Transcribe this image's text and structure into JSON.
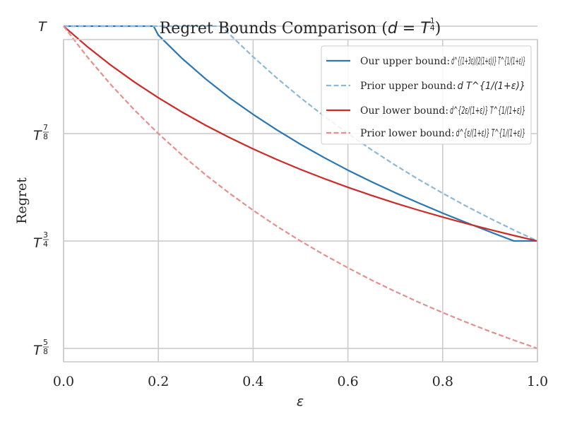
{
  "chart_data": {
    "type": "line",
    "title": {
      "prefix": "Regret Bounds Comparison (",
      "var": "d",
      "eq": " = ",
      "base": "T",
      "exp_num": "1",
      "exp_den": "4",
      "suffix": ")"
    },
    "xlabel": "ε",
    "ylabel": "Regret",
    "xlim": [
      0.0,
      1.0
    ],
    "ylim": [
      0.6094,
      0.9844
    ],
    "xticks": [
      {
        "value": 0.0,
        "label": "0.0"
      },
      {
        "value": 0.2,
        "label": "0.2"
      },
      {
        "value": 0.4,
        "label": "0.4"
      },
      {
        "value": 0.6,
        "label": "0.6"
      },
      {
        "value": 0.8,
        "label": "0.8"
      },
      {
        "value": 1.0,
        "label": "1.0"
      }
    ],
    "yticks": [
      {
        "value": 0.625,
        "base": "T",
        "num": "5",
        "den": "8"
      },
      {
        "value": 0.75,
        "base": "T",
        "num": "3",
        "den": "4"
      },
      {
        "value": 0.875,
        "base": "T",
        "num": "7",
        "den": "8"
      },
      {
        "value": 1.0,
        "base": "T",
        "num": "",
        "den": ""
      }
    ],
    "grid": true,
    "legend_position": "top-right",
    "series": [
      {
        "name": "Our upper bound",
        "label_text": "Our upper bound: ",
        "label_math": "d^{(1+3ε)/(2(1+ε))} T^{1/(1+ε)}",
        "color": "#2a77b4",
        "dash": "solid",
        "opacity": 1,
        "x": [
          0.0,
          0.05,
          0.1,
          0.15,
          0.19,
          0.2,
          0.25,
          0.3,
          0.35,
          0.4,
          0.45,
          0.5,
          0.55,
          0.6,
          0.65,
          0.7,
          0.75,
          0.8,
          0.85,
          0.9,
          0.95,
          1.0
        ],
        "y": [
          1.0,
          1.0,
          1.0,
          1.0,
          1.0,
          0.9896,
          0.9625,
          0.9385,
          0.9167,
          0.8973,
          0.8793,
          0.8625,
          0.847,
          0.8324,
          0.8189,
          0.8061,
          0.7941,
          0.7824,
          0.7714,
          0.7606,
          0.7501,
          0.75
        ]
      },
      {
        "name": "Prior upper bound",
        "label_text": "Prior upper bound: ",
        "label_math": "d T^{1/(1+ε)}",
        "color": "#8db8d6",
        "dash": "dashed",
        "opacity": 1,
        "x": [
          0.0,
          0.1,
          0.2,
          0.3,
          0.333,
          0.35,
          0.4,
          0.45,
          0.5,
          0.55,
          0.6,
          0.65,
          0.7,
          0.75,
          0.8,
          0.85,
          0.9,
          0.95,
          1.0
        ],
        "y": [
          1.0,
          1.0,
          1.0,
          1.0,
          1.0,
          0.9907,
          0.9643,
          0.9397,
          0.9167,
          0.8952,
          0.875,
          0.8561,
          0.8382,
          0.8214,
          0.8056,
          0.7905,
          0.7763,
          0.7628,
          0.75
        ]
      },
      {
        "name": "Our lower bound",
        "label_text": "Our lower bound: ",
        "label_math": "d^{2ε/(1+ε)} T^{1/(1+ε)}",
        "color": "#cc2b27",
        "dash": "solid",
        "opacity": 1,
        "x": [
          0.0,
          0.05,
          0.1,
          0.15,
          0.2,
          0.25,
          0.3,
          0.35,
          0.4,
          0.45,
          0.5,
          0.55,
          0.6,
          0.65,
          0.7,
          0.75,
          0.8,
          0.85,
          0.9,
          0.95,
          1.0
        ],
        "y": [
          1.0,
          0.9762,
          0.9545,
          0.9348,
          0.9167,
          0.9,
          0.8846,
          0.8704,
          0.8571,
          0.8448,
          0.8333,
          0.8226,
          0.8125,
          0.803,
          0.7941,
          0.7857,
          0.7778,
          0.7703,
          0.7632,
          0.7564,
          0.75
        ]
      },
      {
        "name": "Prior lower bound",
        "label_text": "Prior lower bound: ",
        "label_math": "d^{ε/(1+ε)} T^{1/(1+ε)}",
        "color": "#e58f8e",
        "dash": "dashed",
        "opacity": 1,
        "x": [
          0.0,
          0.05,
          0.1,
          0.15,
          0.2,
          0.25,
          0.3,
          0.35,
          0.4,
          0.45,
          0.5,
          0.55,
          0.6,
          0.65,
          0.7,
          0.75,
          0.8,
          0.85,
          0.9,
          0.95,
          1.0
        ],
        "y": [
          1.0,
          0.9643,
          0.9318,
          0.9022,
          0.875,
          0.85,
          0.8269,
          0.8056,
          0.7857,
          0.7672,
          0.75,
          0.7339,
          0.7188,
          0.7045,
          0.6912,
          0.6786,
          0.6667,
          0.6554,
          0.6447,
          0.6346,
          0.625
        ]
      }
    ]
  }
}
